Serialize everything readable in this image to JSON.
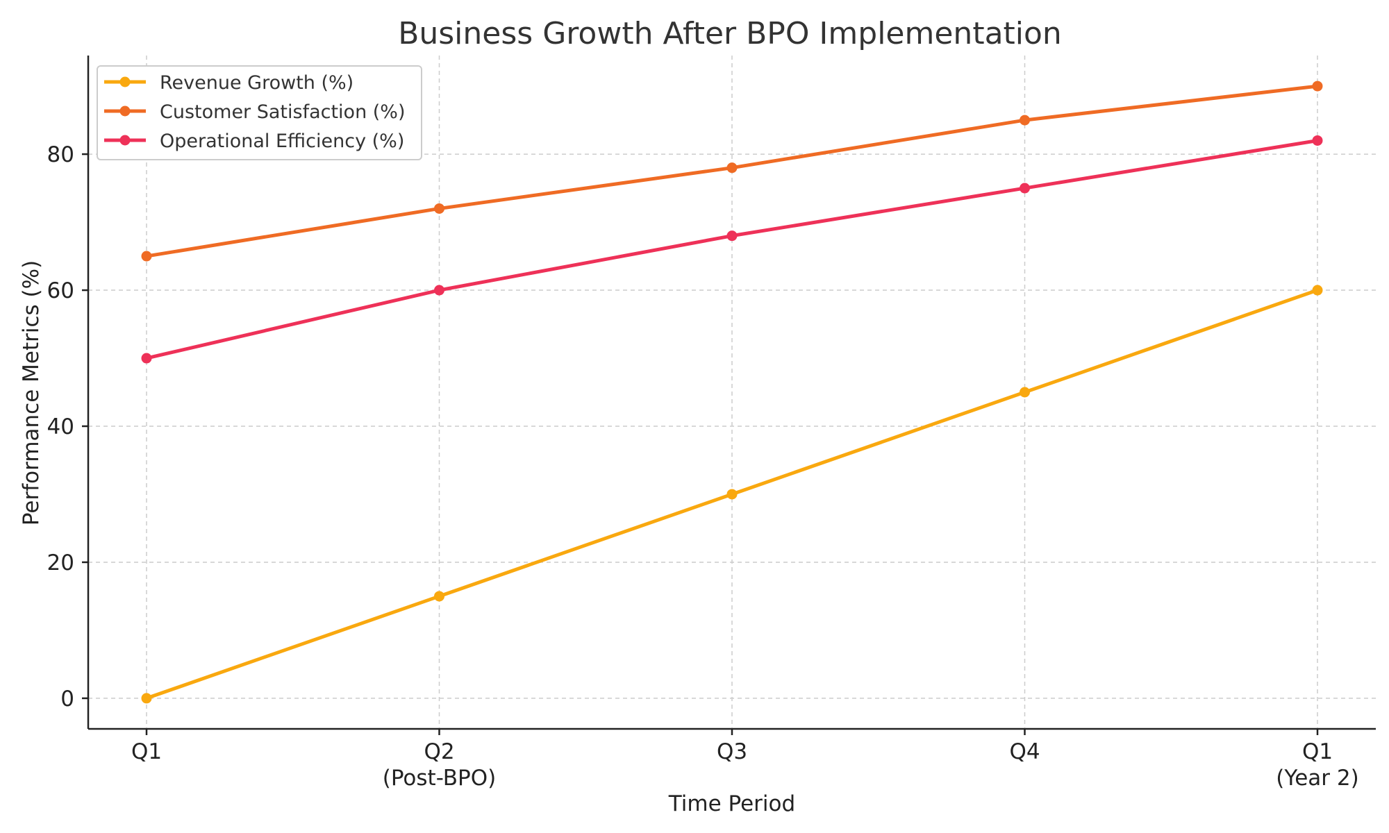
{
  "chart_data": {
    "type": "line",
    "title": "Business Growth After BPO Implementation",
    "xlabel": "Time Period",
    "ylabel": "Performance Metrics (%)",
    "categories": [
      [
        "Q1"
      ],
      [
        "Q2",
        "(Post-BPO)"
      ],
      [
        "Q3"
      ],
      [
        "Q4"
      ],
      [
        "Q1",
        "(Year 2)"
      ]
    ],
    "ylim": [
      -4.5,
      94.5
    ],
    "yticks": [
      0,
      20,
      40,
      60,
      80
    ],
    "grid": true,
    "legend_position": "top-left",
    "series": [
      {
        "name": "Revenue Growth (%)",
        "color": "#f9a80f",
        "values": [
          0,
          15,
          30,
          45,
          60
        ]
      },
      {
        "name": "Customer Satisfaction (%)",
        "color": "#ef6b24",
        "values": [
          65,
          72,
          78,
          85,
          90
        ]
      },
      {
        "name": "Operational Efficiency (%)",
        "color": "#ee3158",
        "values": [
          50,
          60,
          68,
          75,
          82
        ]
      }
    ]
  }
}
